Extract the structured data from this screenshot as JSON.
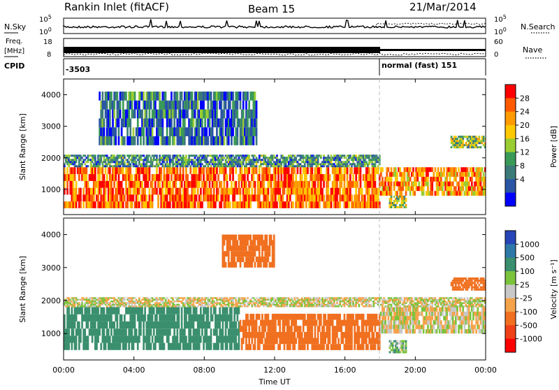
{
  "header": {
    "station": "Rankin Inlet (fitACF)",
    "beam": "Beam 15",
    "date": "21/Mar/2014"
  },
  "strips": {
    "nsky_label": "N.Sky",
    "nsearch_label": "N.Search",
    "nsky_ticks": [
      "10^5",
      "10^0"
    ],
    "nsky_right_ticks": [
      "10^5",
      "10^0"
    ],
    "freq_label_1": "Freq.",
    "freq_label_2": "[MHz]",
    "freq_ticks": [
      "18",
      "8"
    ],
    "nave_label": "Nave",
    "nave_ticks": [
      "60",
      "0"
    ],
    "cpid_label": "CPID",
    "cpid_values": [
      {
        "id": "-3503",
        "start_hour": 0
      },
      {
        "id": "normal (fast) 151",
        "start_hour": 18
      }
    ]
  },
  "chart_data": [
    {
      "type": "heatmap",
      "title": "",
      "xlabel": "",
      "ylabel": "Slant Range [km]",
      "xlim": [
        0,
        24
      ],
      "ylim": [
        200,
        4500
      ],
      "y_ticks": [
        1000,
        2000,
        3000,
        4000
      ],
      "colorbar": {
        "label": "Power [dB]",
        "ticks": [
          "28",
          "24",
          "20",
          "16",
          "12",
          "8",
          "4"
        ],
        "colors": [
          "#ff0000",
          "#ff5a00",
          "#ff9a00",
          "#ffc800",
          "#9acd32",
          "#3a9a58",
          "#3c7a7a",
          "#2a55a5",
          "#0000ff"
        ]
      },
      "bands": [
        {
          "start": 0,
          "end": 18,
          "low": 400,
          "high": 1700,
          "value": 24
        },
        {
          "start": 0,
          "end": 18,
          "low": 1700,
          "high": 2100,
          "value": 10
        },
        {
          "start": 2,
          "end": 11,
          "low": 2400,
          "high": 4100,
          "value": 8
        },
        {
          "start": 18,
          "end": 24,
          "low": 800,
          "high": 1700,
          "value": 22
        },
        {
          "start": 18.5,
          "end": 19.5,
          "low": 400,
          "high": 800,
          "value": 16
        },
        {
          "start": 22,
          "end": 24,
          "low": 2300,
          "high": 2700,
          "value": 14
        }
      ]
    },
    {
      "type": "heatmap",
      "title": "",
      "xlabel": "Time UT",
      "ylabel": "Slant Range [km]",
      "xlim": [
        0,
        24
      ],
      "ylim": [
        200,
        4500
      ],
      "x_ticks": [
        "00:00",
        "04:00",
        "08:00",
        "12:00",
        "16:00",
        "20:00",
        "00:00"
      ],
      "y_ticks": [
        1000,
        2000,
        3000,
        4000
      ],
      "colorbar": {
        "label": "Velocity [m s⁻¹]",
        "ticks": [
          "1000",
          "500",
          "100",
          "25",
          "-25",
          "-100",
          "-500",
          "-1000"
        ],
        "colors": [
          "#2646b8",
          "#2e78a8",
          "#3a8f6e",
          "#7cc33c",
          "#c8c8c8",
          "#f5a34a",
          "#f07020",
          "#f04018",
          "#ff0000"
        ]
      },
      "bands": [
        {
          "start": 0,
          "end": 10,
          "low": 500,
          "high": 1800,
          "value": 300
        },
        {
          "start": 10,
          "end": 18,
          "low": 500,
          "high": 1600,
          "value": -300
        },
        {
          "start": 0,
          "end": 24,
          "low": 1800,
          "high": 2100,
          "value": 0
        },
        {
          "start": 18,
          "end": 24,
          "low": 1000,
          "high": 1800,
          "value": 0
        },
        {
          "start": 9,
          "end": 12,
          "low": 3000,
          "high": 4000,
          "value": -300
        },
        {
          "start": 18.5,
          "end": 19.5,
          "low": 400,
          "high": 800,
          "value": 60
        },
        {
          "start": 22,
          "end": 24,
          "low": 2300,
          "high": 2700,
          "value": -300
        }
      ]
    }
  ]
}
